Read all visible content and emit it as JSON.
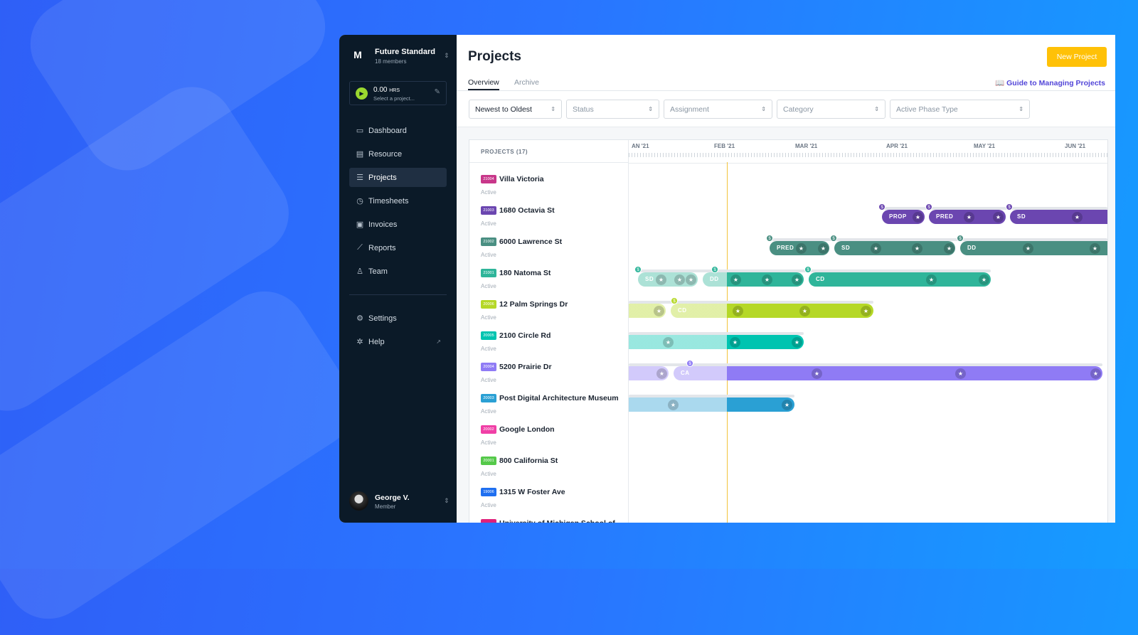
{
  "colors": {
    "accent_yellow": "#ffc107",
    "sidebar_bg": "#0b1a28",
    "link_purple": "#5346d8",
    "today_line": "#f2c33c"
  },
  "workspace": {
    "logo": "M",
    "name": "Future Standard",
    "members": "18 members"
  },
  "timer": {
    "value": "0.00",
    "unit": "HRS",
    "placeholder": "Select a project...",
    "icon": "play-icon"
  },
  "sidebar": {
    "items": [
      {
        "label": "Dashboard",
        "icon": "monitor-icon"
      },
      {
        "label": "Resource",
        "icon": "resource-icon"
      },
      {
        "label": "Projects",
        "icon": "projects-icon",
        "active": true
      },
      {
        "label": "Timesheets",
        "icon": "clock-icon"
      },
      {
        "label": "Invoices",
        "icon": "invoice-icon"
      },
      {
        "label": "Reports",
        "icon": "chart-icon"
      },
      {
        "label": "Team",
        "icon": "user-icon"
      }
    ],
    "bottom": [
      {
        "label": "Settings",
        "icon": "gear-icon"
      },
      {
        "label": "Help",
        "icon": "lifebuoy-icon"
      }
    ]
  },
  "user": {
    "name": "George V.",
    "role": "Member"
  },
  "header": {
    "title": "Projects",
    "new_button": "New Project",
    "guide_link": "Guide to Managing Projects",
    "tabs": [
      {
        "label": "Overview",
        "active": true
      },
      {
        "label": "Archive"
      }
    ]
  },
  "filters": [
    {
      "label": "Newest to Oldest",
      "selected": true
    },
    {
      "label": "Status"
    },
    {
      "label": "Assignment"
    },
    {
      "label": "Category"
    },
    {
      "label": "Active Phase Type"
    }
  ],
  "timeline": {
    "list_header": "PROJECTS (17)",
    "months": [
      "AN '21",
      "FEB '21",
      "MAR '21",
      "APR '21",
      "MAY '21",
      "JUN '21"
    ]
  },
  "projects": [
    {
      "code": "21004",
      "name": "Villa Victoria",
      "status": "Active",
      "color": "#c8378a"
    },
    {
      "code": "21003",
      "name": "1680 Octavia St",
      "status": "Active",
      "color": "#6b46b0"
    },
    {
      "code": "21002",
      "name": "6000 Lawrence St",
      "status": "Active",
      "color": "#4a8f82"
    },
    {
      "code": "21001",
      "name": "180 Natoma St",
      "status": "Active",
      "color": "#2fb59a"
    },
    {
      "code": "20006",
      "name": "12 Palm Springs Dr",
      "status": "Active",
      "color": "#b5d827"
    },
    {
      "code": "20005",
      "name": "2100 Circle Rd",
      "status": "Active",
      "color": "#00c4b0"
    },
    {
      "code": "20004",
      "name": "5200 Prairie Dr",
      "status": "Active",
      "color": "#8f7bf5"
    },
    {
      "code": "20003",
      "name": "Post Digital Architecture Museum",
      "status": "Active",
      "color": "#2aa0d4"
    },
    {
      "code": "20002",
      "name": "Google London",
      "status": "Active",
      "color": "#f03fa6"
    },
    {
      "code": "20001",
      "name": "800 California St",
      "status": "Active",
      "color": "#55c94a"
    },
    {
      "code": "19006",
      "name": "1315 W Foster Ave",
      "status": "Active",
      "color": "#1f6ff0"
    },
    {
      "code": "",
      "name": "University of Michigan School of",
      "status": "",
      "color": "#e0207a"
    }
  ],
  "phases": {
    "prop": "PROP",
    "pred": "PRED",
    "sd": "SD",
    "dd": "DD",
    "cd": "CD",
    "ca": "CA",
    "dollar": "$",
    "star": "★"
  }
}
